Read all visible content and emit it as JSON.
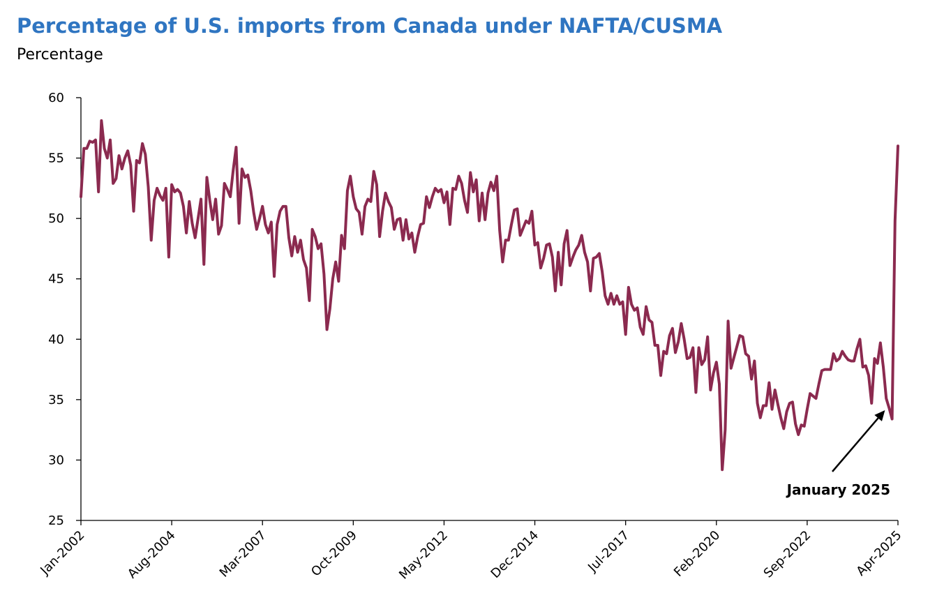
{
  "colors": {
    "title": "#2F75C1",
    "series": "#8B2A4F",
    "axis": "#000000"
  },
  "chart_data": {
    "type": "line",
    "title": "Percentage of U.S. imports from Canada under NAFTA/CUSMA",
    "subtitle": "Percentage",
    "xlabel": "",
    "ylabel": "",
    "ylim": [
      25,
      60
    ],
    "yticks": [
      25,
      30,
      35,
      40,
      45,
      50,
      55,
      60
    ],
    "xlim": [
      "2002-01",
      "2025-04"
    ],
    "xticks": [
      "Jan-2002",
      "Aug-2004",
      "Mar-2007",
      "Oct-2009",
      "May-2012",
      "Dec-2014",
      "Jul-2017",
      "Feb-2020",
      "Sep-2022",
      "Apr-2025"
    ],
    "grid": false,
    "legend": "none",
    "annotation": {
      "text": "January 2025",
      "x": "2025-01",
      "y": 34.3
    },
    "series": [
      {
        "name": "",
        "start": "2002-01",
        "frequency": "monthly",
        "values": [
          51.8,
          55.8,
          55.8,
          56.4,
          56.3,
          56.5,
          52.2,
          58.1,
          55.8,
          55.0,
          56.5,
          52.9,
          53.3,
          55.2,
          54.1,
          55.0,
          55.6,
          54.4,
          50.6,
          54.8,
          54.6,
          56.2,
          55.3,
          52.6,
          48.2,
          51.5,
          52.5,
          51.9,
          51.5,
          52.5,
          46.8,
          52.8,
          52.2,
          52.4,
          52.1,
          51.0,
          48.8,
          51.4,
          49.6,
          48.4,
          50.0,
          51.6,
          46.2,
          53.4,
          51.5,
          49.9,
          51.6,
          48.7,
          49.4,
          52.9,
          52.4,
          51.8,
          54.0,
          55.9,
          49.6,
          54.1,
          53.4,
          53.6,
          52.3,
          50.5,
          49.1,
          50.0,
          51.0,
          49.5,
          48.8,
          49.7,
          45.2,
          49.5,
          50.6,
          51.0,
          51.0,
          48.4,
          46.9,
          48.5,
          47.2,
          48.2,
          46.6,
          45.9,
          43.2,
          49.1,
          48.5,
          47.5,
          47.9,
          45.4,
          40.8,
          42.5,
          45.0,
          46.4,
          44.8,
          48.6,
          47.5,
          52.3,
          53.5,
          51.8,
          50.8,
          50.5,
          48.7,
          51.0,
          51.6,
          51.4,
          53.9,
          52.8,
          48.5,
          50.6,
          52.1,
          51.4,
          50.9,
          49.1,
          49.9,
          50.0,
          48.2,
          49.9,
          48.3,
          48.8,
          47.2,
          48.5,
          49.5,
          49.6,
          51.8,
          50.9,
          51.8,
          52.5,
          52.2,
          52.4,
          51.3,
          52.2,
          49.5,
          52.5,
          52.4,
          53.5,
          52.9,
          51.5,
          50.5,
          53.8,
          52.2,
          53.2,
          49.8,
          52.1,
          49.9,
          52.1,
          53.0,
          52.3,
          53.5,
          49.0,
          46.4,
          48.2,
          48.2,
          49.5,
          50.7,
          50.8,
          48.6,
          49.2,
          49.8,
          49.6,
          50.6,
          47.8,
          48.0,
          45.9,
          46.7,
          47.8,
          47.9,
          46.8,
          44.0,
          47.2,
          44.5,
          47.9,
          49.0,
          46.1,
          46.8,
          47.4,
          47.8,
          48.6,
          47.2,
          46.4,
          44.0,
          46.7,
          46.8,
          47.1,
          45.6,
          43.6,
          42.9,
          43.8,
          42.9,
          43.6,
          42.9,
          43.1,
          40.4,
          44.3,
          42.9,
          42.4,
          42.6,
          41.0,
          40.4,
          42.7,
          41.6,
          41.4,
          39.5,
          39.5,
          37.0,
          39.0,
          38.8,
          40.3,
          40.9,
          38.9,
          39.8,
          41.3,
          40.0,
          38.4,
          38.5,
          39.3,
          35.6,
          39.3,
          37.9,
          38.3,
          40.2,
          35.8,
          37.2,
          38.1,
          36.3,
          29.2,
          32.5,
          41.5,
          37.6,
          38.5,
          39.4,
          40.3,
          40.2,
          38.8,
          38.6,
          36.7,
          38.2,
          34.7,
          33.5,
          34.5,
          34.5,
          36.4,
          34.2,
          35.8,
          34.6,
          33.5,
          32.6,
          34.0,
          34.7,
          34.8,
          33.0,
          32.1,
          32.9,
          32.8,
          34.2,
          35.5,
          35.3,
          35.1,
          36.3,
          37.4,
          37.5,
          37.5,
          37.5,
          38.8,
          38.2,
          38.4,
          39.0,
          38.6,
          38.3,
          38.2,
          38.2,
          39.2,
          40.0,
          37.7,
          37.8,
          37.0,
          34.7,
          38.4,
          38.0,
          39.7,
          37.7,
          35.1,
          34.3,
          33.4,
          49.8,
          56.0
        ]
      }
    ]
  }
}
